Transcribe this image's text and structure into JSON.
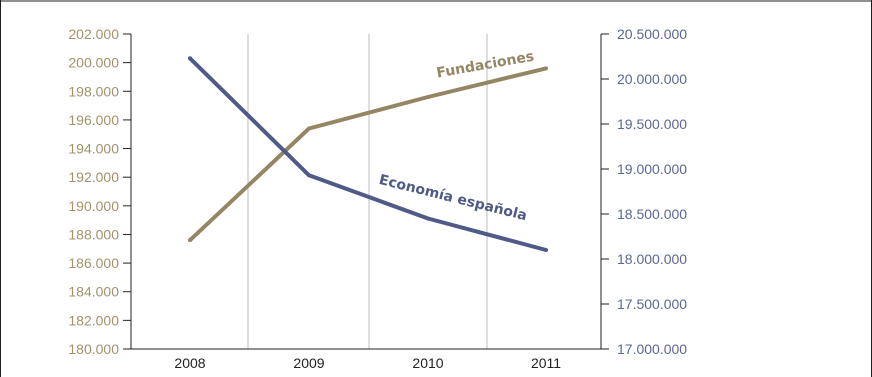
{
  "chart_data": {
    "type": "line",
    "title": "",
    "xlabel": "",
    "categories": [
      "2008",
      "2009",
      "2010",
      "2011"
    ],
    "y_left": {
      "min": 180000,
      "max": 202000,
      "step": 2000,
      "tick_labels": [
        "180.000",
        "182.000",
        "184.000",
        "186.000",
        "188.000",
        "190.000",
        "192.000",
        "194.000",
        "196.000",
        "198.000",
        "200.000",
        "202.000"
      ]
    },
    "y_right": {
      "min": 17000000,
      "max": 20500000,
      "step": 500000,
      "tick_labels": [
        "17.000.000",
        "17.500.000",
        "18.000.000",
        "18.500.000",
        "19.000.000",
        "19.500.000",
        "20.000.000",
        "20.500.000"
      ]
    },
    "series": [
      {
        "name": "Fundaciones",
        "axis": "left",
        "color": "#948663",
        "values": [
          187600,
          195400,
          197600,
          199600
        ]
      },
      {
        "name": "Economía española",
        "axis": "right",
        "color": "#4f5a86",
        "values": [
          20230000,
          18930000,
          18450000,
          18100000
        ]
      }
    ],
    "grid": "vertical",
    "legend": "inline labels"
  }
}
